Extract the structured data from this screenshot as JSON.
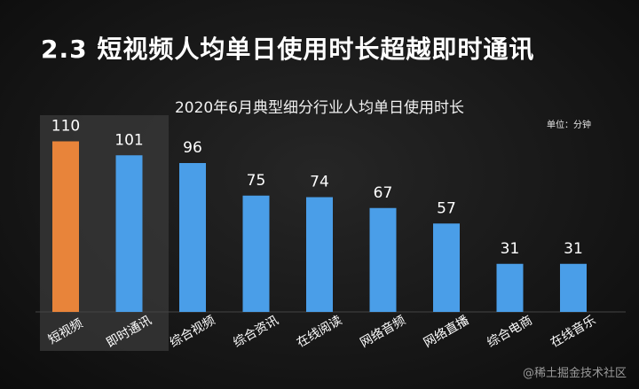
{
  "slide": {
    "title": "2.3 短视频人均单日使用时长超越即时通讯"
  },
  "watermark": "@稀土掘金技术社区",
  "colors": {
    "highlight": "#e8843a",
    "bar": "#4a9ee8",
    "highlight_box": "#3a3a3a",
    "text": "#ffffff"
  },
  "chart_data": {
    "type": "bar",
    "title": "2020年6月典型细分行业人均单日使用时长",
    "unit": "单位：分钟",
    "categories": [
      "短视频",
      "即时通讯",
      "综合视频",
      "综合资讯",
      "在线阅读",
      "网络音频",
      "网络直播",
      "综合电商",
      "在线音乐"
    ],
    "values": [
      110,
      101,
      96,
      75,
      74,
      67,
      57,
      31,
      31
    ],
    "highlighted_categories": [
      "短视频",
      "即时通讯"
    ],
    "highlight_series_color": "#e8843a",
    "ylim": [
      0,
      120
    ],
    "grid": false,
    "data_labels": true
  }
}
